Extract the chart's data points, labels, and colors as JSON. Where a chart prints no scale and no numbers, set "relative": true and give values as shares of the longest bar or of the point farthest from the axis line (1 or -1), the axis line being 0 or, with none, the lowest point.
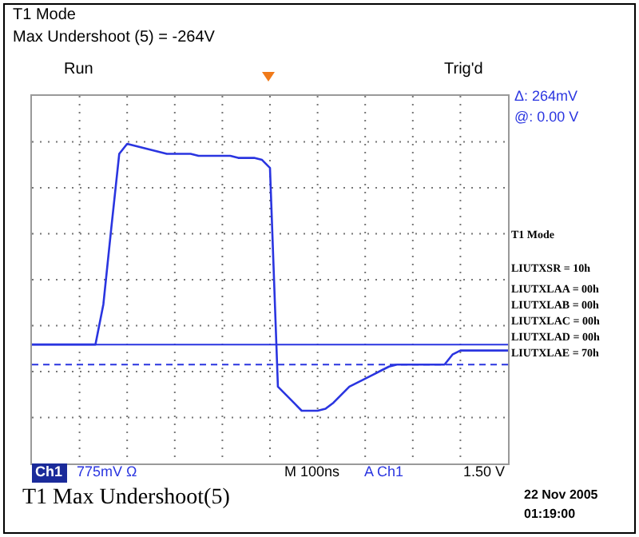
{
  "chart_data": {
    "type": "line",
    "title": "T1 Mode",
    "subtitle": "Max Undershoot (5) = -264V",
    "relative": true,
    "grid": true,
    "categories": [
      null,
      null,
      null,
      null,
      null,
      null,
      null,
      null,
      null,
      null,
      null,
      null,
      null,
      null,
      null,
      null,
      null,
      null,
      null,
      null,
      null,
      null,
      null,
      null,
      null,
      null,
      null,
      null,
      null,
      null,
      null,
      null,
      null,
      null,
      null,
      null,
      null,
      null,
      null,
      null,
      null,
      null,
      null,
      null,
      null,
      null,
      null,
      null,
      null,
      null,
      null,
      null,
      null,
      null,
      null,
      null,
      null,
      null,
      null,
      null,
      null
    ],
    "series": [
      {
        "color": "#2a35e0",
        "values": [
          0,
          0,
          0,
          0,
          0,
          0,
          0,
          0,
          0,
          0.2,
          0.58,
          0.95,
          1,
          0.99,
          0.98,
          0.97,
          0.96,
          0.95,
          0.95,
          0.95,
          0.95,
          0.94,
          0.94,
          0.94,
          0.94,
          0.94,
          0.93,
          0.93,
          0.93,
          0.92,
          0.88,
          -0.21,
          -0.25,
          -0.29,
          -0.33,
          -0.33,
          -0.33,
          -0.32,
          -0.29,
          -0.25,
          -0.21,
          -0.19,
          -0.17,
          -0.15,
          -0.13,
          -0.11,
          -0.1,
          -0.1,
          -0.1,
          -0.1,
          -0.1,
          -0.1,
          -0.1,
          -0.05,
          -0.03,
          -0.03,
          -0.03,
          -0.03,
          -0.03,
          -0.03,
          -0.03
        ]
      }
    ],
    "ref_lines": [
      {
        "axis": "y",
        "value": 0,
        "color": "#2a35e0",
        "line_style": "solid"
      },
      {
        "axis": "y",
        "value": -0.1,
        "color": "#2a35e0",
        "line_style": "dashed"
      }
    ],
    "annotations": [
      "Run",
      "Trig'd",
      "Δ:  264mV",
      "@:  0.00 V",
      "T1 Mode",
      "LIUTXSR = 10h",
      "LIUTXLAA = 00h",
      "LIUTXLAB = 00h",
      "LIUTXLAC = 00h",
      "LIUTXLAD = 00h",
      "LIUTXLAE = 70h",
      "Ch1",
      "775mV Ω",
      "M 100ns",
      "A  Ch1",
      "1.50 V",
      "T1 Max Undershoot(5)",
      "22 Nov 2005",
      "01:19:00"
    ]
  }
}
